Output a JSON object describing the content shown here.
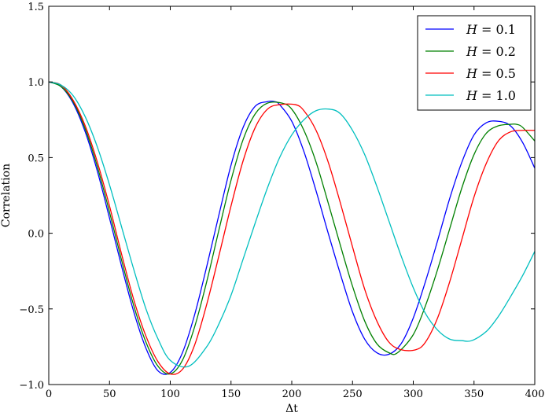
{
  "chart_data": {
    "type": "line",
    "xlabel": "Δt",
    "ylabel": "Correlation",
    "xlim": [
      0,
      400
    ],
    "ylim": [
      -1.0,
      1.5
    ],
    "xticks": [
      "0",
      "50",
      "100",
      "150",
      "200",
      "250",
      "300",
      "350",
      "400"
    ],
    "xtick_values": [
      0,
      50,
      100,
      150,
      200,
      250,
      300,
      350,
      400
    ],
    "yticks": [
      "−1.0",
      "−0.5",
      "0.0",
      "0.5",
      "1.0",
      "1.5"
    ],
    "ytick_values": [
      -1.0,
      -0.5,
      0.0,
      0.5,
      1.0,
      1.5
    ],
    "grid": false,
    "legend_position": "top-right",
    "series": [
      {
        "name": "H = 0.1",
        "var": "H",
        "val": "= 0.1",
        "color": "#0000ff",
        "x": [
          0,
          10,
          20,
          30,
          40,
          50,
          60,
          70,
          80,
          90,
          100,
          110,
          120,
          130,
          140,
          150,
          160,
          170,
          180,
          186,
          190,
          200,
          210,
          220,
          230,
          240,
          250,
          260,
          270,
          280,
          290,
          300,
          310,
          320,
          330,
          340,
          350,
          360,
          370,
          380,
          390,
          400
        ],
        "y": [
          1.0,
          0.97,
          0.86,
          0.67,
          0.41,
          0.1,
          -0.22,
          -0.52,
          -0.76,
          -0.91,
          -0.92,
          -0.79,
          -0.54,
          -0.22,
          0.12,
          0.45,
          0.7,
          0.84,
          0.87,
          0.87,
          0.85,
          0.74,
          0.54,
          0.28,
          0.0,
          -0.27,
          -0.52,
          -0.7,
          -0.79,
          -0.8,
          -0.73,
          -0.56,
          -0.32,
          -0.05,
          0.23,
          0.47,
          0.65,
          0.73,
          0.74,
          0.71,
          0.6,
          0.43
        ]
      },
      {
        "name": "H = 0.2",
        "var": "H",
        "val": "= 0.2",
        "color": "#008000",
        "x": [
          0,
          10,
          20,
          30,
          40,
          50,
          60,
          70,
          80,
          90,
          100,
          110,
          120,
          130,
          140,
          150,
          160,
          170,
          180,
          192,
          200,
          210,
          220,
          230,
          240,
          250,
          260,
          270,
          280,
          287,
          300,
          310,
          320,
          330,
          340,
          350,
          360,
          370,
          380,
          385,
          390,
          400
        ],
        "y": [
          1.0,
          0.97,
          0.87,
          0.69,
          0.44,
          0.14,
          -0.18,
          -0.48,
          -0.72,
          -0.88,
          -0.93,
          -0.84,
          -0.62,
          -0.32,
          0.02,
          0.35,
          0.62,
          0.79,
          0.86,
          0.86,
          0.82,
          0.68,
          0.47,
          0.2,
          -0.08,
          -0.35,
          -0.58,
          -0.73,
          -0.79,
          -0.79,
          -0.67,
          -0.48,
          -0.24,
          0.03,
          0.3,
          0.52,
          0.66,
          0.71,
          0.72,
          0.72,
          0.7,
          0.61
        ]
      },
      {
        "name": "H = 0.5",
        "var": "H",
        "val": "= 0.5",
        "color": "#ff0000",
        "x": [
          0,
          10,
          20,
          30,
          40,
          50,
          60,
          70,
          80,
          90,
          100,
          110,
          120,
          130,
          140,
          150,
          160,
          170,
          180,
          190,
          203,
          210,
          220,
          230,
          240,
          250,
          260,
          270,
          280,
          290,
          302,
          310,
          320,
          330,
          340,
          350,
          360,
          370,
          380,
          390,
          400
        ],
        "y": [
          1.0,
          0.98,
          0.88,
          0.71,
          0.47,
          0.18,
          -0.14,
          -0.44,
          -0.68,
          -0.85,
          -0.93,
          -0.9,
          -0.74,
          -0.47,
          -0.15,
          0.18,
          0.48,
          0.7,
          0.82,
          0.85,
          0.85,
          0.81,
          0.68,
          0.47,
          0.2,
          -0.09,
          -0.37,
          -0.58,
          -0.72,
          -0.77,
          -0.77,
          -0.72,
          -0.56,
          -0.32,
          -0.04,
          0.24,
          0.46,
          0.61,
          0.67,
          0.68,
          0.68
        ]
      },
      {
        "name": "H = 1.0",
        "var": "H",
        "val": "= 1.0",
        "color": "#00bfbf",
        "x": [
          0,
          10,
          20,
          30,
          40,
          50,
          60,
          70,
          80,
          90,
          100,
          115,
          130,
          140,
          150,
          160,
          170,
          180,
          190,
          200,
          210,
          220,
          231,
          240,
          250,
          260,
          270,
          280,
          290,
          300,
          310,
          320,
          330,
          340,
          348,
          360,
          370,
          380,
          390,
          400
        ],
        "y": [
          1.0,
          0.98,
          0.91,
          0.77,
          0.57,
          0.32,
          0.04,
          -0.24,
          -0.5,
          -0.7,
          -0.84,
          -0.88,
          -0.75,
          -0.6,
          -0.41,
          -0.17,
          0.07,
          0.3,
          0.5,
          0.65,
          0.75,
          0.81,
          0.82,
          0.79,
          0.68,
          0.52,
          0.31,
          0.08,
          -0.15,
          -0.36,
          -0.53,
          -0.64,
          -0.7,
          -0.71,
          -0.71,
          -0.65,
          -0.55,
          -0.42,
          -0.28,
          -0.12
        ]
      }
    ]
  }
}
